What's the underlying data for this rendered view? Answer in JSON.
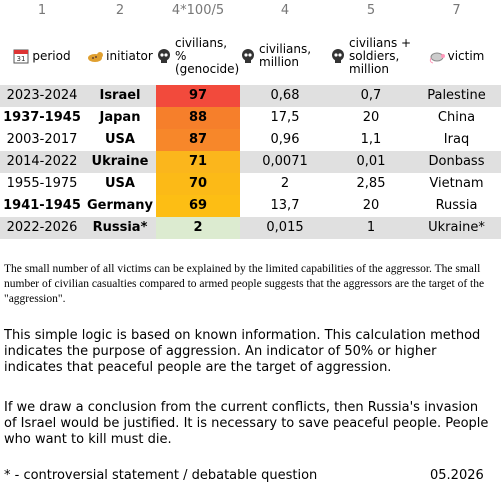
{
  "column_numbers": [
    "1",
    "2",
    "4*100/5",
    "4",
    "5",
    "7"
  ],
  "headers": [
    "period",
    "initiator",
    "civilians, % (genocide)",
    "civilians, million",
    "civilians + soldiers, million",
    "victim"
  ],
  "table": {
    "rows": [
      [
        "2023-2024",
        "Israel",
        "97",
        "0,68",
        "0,7",
        "Palestine"
      ],
      [
        "1937-1945",
        "Japan",
        "88",
        "17,5",
        "20",
        "China"
      ],
      [
        "2003-2017",
        "USA",
        "87",
        "0,96",
        "1,1",
        "Iraq"
      ],
      [
        "2014-2022",
        "Ukraine",
        "71",
        "0,0071",
        "0,01",
        "Donbass"
      ],
      [
        "1955-1975",
        "USA",
        "70",
        "2",
        "2,85",
        "Vietnam"
      ],
      [
        "1941-1945",
        "Germany",
        "69",
        "13,7",
        "20",
        "Russia"
      ],
      [
        "2022-2026",
        "Russia*",
        "2",
        "0,015",
        "1",
        "Ukraine*"
      ]
    ]
  },
  "notes": [
    "The small number of all victims can be explained by the limited capabilities of the aggressor. The small number of civilian casualties compared to armed people suggests that the aggressors are the target of the \"aggression\".",
    "This simple logic is based on known information. This calculation method indicates the purpose of aggression. An indicator of 50% or higher indicates that peaceful people are the target of aggression.",
    "If we draw a conclusion from the current conflicts, then Russia's invasion of Israel would be justified. It is necessary to save peaceful people. People who want to kill must die."
  ],
  "footer": {
    "note": "* - controversial statement / debatable question",
    "date": "05.2026"
  }
}
